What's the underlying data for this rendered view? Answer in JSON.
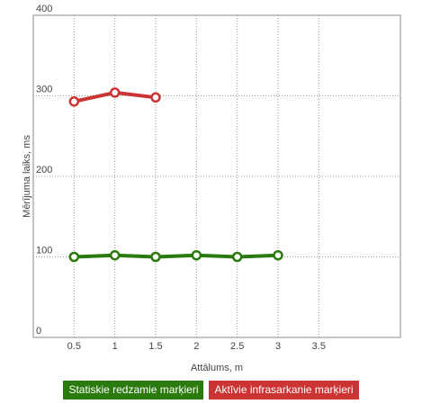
{
  "chart_data": {
    "type": "line",
    "title": "",
    "xlabel": "Attālums, m",
    "ylabel": "Mērījuma laiks, ms",
    "xlim": [
      0,
      4.5
    ],
    "ylim": [
      0,
      400
    ],
    "xticks": [
      "0.5",
      "1",
      "1.5",
      "2",
      "2.5",
      "3",
      "3.5"
    ],
    "yticks": [
      "0",
      "100",
      "200",
      "300",
      "400"
    ],
    "grid": true,
    "legend_position": "bottom",
    "series": [
      {
        "name": "Statiskie redzamie marķieri",
        "color": "#2a7a0e",
        "x": [
          0.5,
          1,
          1.5,
          2,
          2.5,
          3
        ],
        "y": [
          100,
          102,
          100,
          102,
          100,
          102
        ]
      },
      {
        "name": "Aktīvie infrasarkanie marķieri",
        "color": "#cc3333",
        "x": [
          0.5,
          1,
          1.5
        ],
        "y": [
          293,
          304,
          298
        ]
      }
    ]
  }
}
